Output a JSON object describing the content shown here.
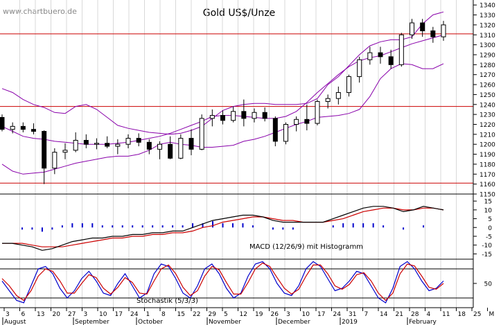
{
  "chart_data": [
    {
      "type": "candlestick",
      "title": "Gold US$/Unze",
      "watermark": "www.chartbuero.de",
      "ylim": [
        1150,
        1345
      ],
      "ytick_values": [
        1160,
        1170,
        1180,
        1190,
        1200,
        1210,
        1220,
        1230,
        1240,
        1250,
        1260,
        1270,
        1280,
        1290,
        1300,
        1310,
        1320,
        1330,
        1340
      ],
      "horizontal_lines": [
        1311,
        1238,
        1161
      ],
      "colors": {
        "candle": "#000000",
        "bollinger": "#8800aa",
        "hline": "#cc0000"
      },
      "bollinger": {
        "upper": [
          1256,
          1252,
          1245,
          1240,
          1237,
          1232,
          1231,
          1238,
          1240,
          1235,
          1227,
          1219,
          1216,
          1214,
          1212,
          1211,
          1210,
          1211,
          1214,
          1218,
          1226,
          1234,
          1238,
          1240,
          1241,
          1241,
          1240,
          1240,
          1240,
          1241,
          1246,
          1260,
          1268,
          1279,
          1290,
          1299,
          1303,
          1305,
          1305,
          1308,
          1321,
          1330,
          1333
        ],
        "middle": [
          1218,
          1213,
          1208,
          1206,
          1205,
          1203,
          1202,
          1201,
          1200,
          1200,
          1200,
          1201,
          1202,
          1204,
          1206,
          1208,
          1211,
          1215,
          1219,
          1223,
          1228,
          1229,
          1229,
          1228,
          1227,
          1226,
          1226,
          1228,
          1233,
          1242,
          1252,
          1261,
          1270,
          1278,
          1284,
          1287,
          1289,
          1293,
          1297,
          1301,
          1304,
          1307,
          1310
        ],
        "lower": [
          1180,
          1173,
          1170,
          1171,
          1172,
          1175,
          1178,
          1181,
          1183,
          1185,
          1187,
          1188,
          1188,
          1190,
          1194,
          1200,
          1202,
          1200,
          1199,
          1197,
          1197,
          1198,
          1199,
          1203,
          1205,
          1208,
          1212,
          1216,
          1220,
          1223,
          1227,
          1228,
          1229,
          1231,
          1235,
          1248,
          1266,
          1276,
          1281,
          1280,
          1276,
          1276,
          1281
        ]
      },
      "ohlc": [
        [
          1227,
          1230,
          1213,
          1215
        ],
        [
          1215,
          1222,
          1211,
          1218
        ],
        [
          1218,
          1222,
          1212,
          1215
        ],
        [
          1215,
          1221,
          1210,
          1213
        ],
        [
          1213,
          1214,
          1160,
          1176
        ],
        [
          1176,
          1196,
          1170,
          1192
        ],
        [
          1192,
          1201,
          1185,
          1194
        ],
        [
          1194,
          1212,
          1192,
          1204
        ],
        [
          1204,
          1210,
          1196,
          1200
        ],
        [
          1200,
          1206,
          1195,
          1201
        ],
        [
          1201,
          1208,
          1196,
          1198
        ],
        [
          1198,
          1205,
          1190,
          1200
        ],
        [
          1200,
          1210,
          1196,
          1206
        ],
        [
          1206,
          1211,
          1198,
          1202
        ],
        [
          1202,
          1205,
          1190,
          1195
        ],
        [
          1195,
          1203,
          1185,
          1200
        ],
        [
          1200,
          1208,
          1185,
          1186
        ],
        [
          1186,
          1210,
          1185,
          1206
        ],
        [
          1206,
          1215,
          1189,
          1195
        ],
        [
          1195,
          1230,
          1194,
          1226
        ],
        [
          1226,
          1235,
          1218,
          1229
        ],
        [
          1229,
          1234,
          1220,
          1224
        ],
        [
          1224,
          1238,
          1222,
          1233
        ],
        [
          1233,
          1245,
          1218,
          1226
        ],
        [
          1226,
          1236,
          1222,
          1232
        ],
        [
          1232,
          1237,
          1223,
          1226
        ],
        [
          1226,
          1228,
          1198,
          1203
        ],
        [
          1203,
          1222,
          1200,
          1220
        ],
        [
          1220,
          1228,
          1213,
          1225
        ],
        [
          1225,
          1240,
          1214,
          1221
        ],
        [
          1221,
          1245,
          1219,
          1243
        ],
        [
          1243,
          1250,
          1236,
          1246
        ],
        [
          1246,
          1258,
          1240,
          1252
        ],
        [
          1252,
          1270,
          1248,
          1268
        ],
        [
          1268,
          1288,
          1262,
          1285
        ],
        [
          1285,
          1298,
          1280,
          1292
        ],
        [
          1292,
          1298,
          1281,
          1288
        ],
        [
          1288,
          1295,
          1276,
          1280
        ],
        [
          1280,
          1312,
          1278,
          1310
        ],
        [
          1310,
          1326,
          1306,
          1322
        ],
        [
          1322,
          1326,
          1308,
          1314
        ],
        [
          1314,
          1318,
          1302,
          1308
        ],
        [
          1308,
          1324,
          1304,
          1320
        ]
      ]
    },
    {
      "type": "line",
      "annotation": "MACD (12/26/9) mit Histogramm",
      "ylim": [
        -18,
        19
      ],
      "ytick_values": [
        -15,
        -10,
        -5,
        0,
        5,
        10,
        15
      ],
      "colors": {
        "macd": "#000000",
        "signal": "#cc0000",
        "histogram": "#0000cc"
      },
      "series": [
        {
          "values": [
            -9,
            -9,
            -10,
            -11,
            -13,
            -12,
            -10,
            -8,
            -7,
            -6,
            -6,
            -5,
            -5,
            -4,
            -4,
            -3,
            -3,
            -2,
            -2,
            0,
            2,
            4,
            5,
            6,
            7,
            7,
            6,
            4,
            3,
            3,
            3,
            3,
            3,
            5,
            7,
            9,
            11,
            12,
            12,
            11,
            9,
            10,
            12,
            11,
            10
          ]
        },
        {
          "values": [
            -9,
            -9,
            -9,
            -10,
            -11,
            -11,
            -11,
            -10,
            -9,
            -8,
            -7,
            -6,
            -6,
            -5,
            -5,
            -4,
            -4,
            -3,
            -3,
            -2,
            0,
            1,
            3,
            4,
            5,
            6,
            6,
            5,
            4,
            4,
            3,
            3,
            3,
            4,
            5,
            7,
            9,
            10,
            11,
            11,
            10,
            10,
            11,
            11,
            10
          ]
        }
      ]
    },
    {
      "type": "line",
      "annotation": "Stochastik (5/3/3)",
      "ylim": [
        0,
        100
      ],
      "ytick_values": [
        50
      ],
      "horizontal_lines": [
        80,
        20
      ],
      "colors": {
        "k": "#0000cc",
        "d": "#cc0000",
        "bounds": "#000000"
      },
      "series": [
        {
          "values": [
            55,
            35,
            15,
            10,
            45,
            80,
            85,
            70,
            40,
            20,
            35,
            60,
            75,
            55,
            30,
            25,
            50,
            70,
            45,
            20,
            30,
            70,
            90,
            85,
            60,
            30,
            20,
            45,
            80,
            90,
            70,
            40,
            20,
            30,
            65,
            90,
            95,
            80,
            50,
            30,
            25,
            45,
            80,
            95,
            85,
            60,
            35,
            40,
            55,
            75,
            70,
            45,
            20,
            10,
            40,
            85,
            95,
            80,
            55,
            35,
            40,
            55
          ]
        },
        {
          "values": [
            60,
            45,
            25,
            15,
            35,
            65,
            80,
            75,
            55,
            30,
            30,
            50,
            68,
            62,
            40,
            28,
            42,
            62,
            52,
            30,
            28,
            55,
            80,
            88,
            70,
            42,
            25,
            35,
            65,
            85,
            78,
            52,
            28,
            28,
            52,
            80,
            92,
            85,
            62,
            40,
            28,
            38,
            65,
            88,
            88,
            70,
            45,
            38,
            48,
            68,
            72,
            55,
            30,
            15,
            30,
            70,
            90,
            86,
            65,
            42,
            38,
            50
          ]
        }
      ]
    }
  ],
  "right_axis_labels": {
    "price": [
      "1340",
      "1330",
      "1320",
      "1310",
      "1300",
      "1290",
      "1280",
      "1270",
      "1260",
      "1250",
      "1240",
      "1230",
      "1220",
      "1210",
      "1200",
      "1190",
      "1180",
      "1170",
      "1160",
      "1150"
    ],
    "macd": [
      "15",
      "10",
      "5",
      "0",
      "-5",
      "-10",
      "-15"
    ],
    "stoch": [
      "50"
    ]
  },
  "x_axis": {
    "days": [
      "3",
      "6",
      "13",
      "20",
      "27",
      "3",
      "10",
      "17",
      "24",
      "1",
      "8",
      "15",
      "22",
      "29",
      "5",
      "12",
      "19",
      "26",
      "3",
      "10",
      "17",
      "24",
      "31",
      "7",
      "14",
      "21",
      "28",
      "4",
      "11",
      "18",
      "25",
      "M"
    ],
    "months": [
      "August",
      "September",
      "October",
      "November",
      "December",
      "2019",
      "February"
    ]
  }
}
